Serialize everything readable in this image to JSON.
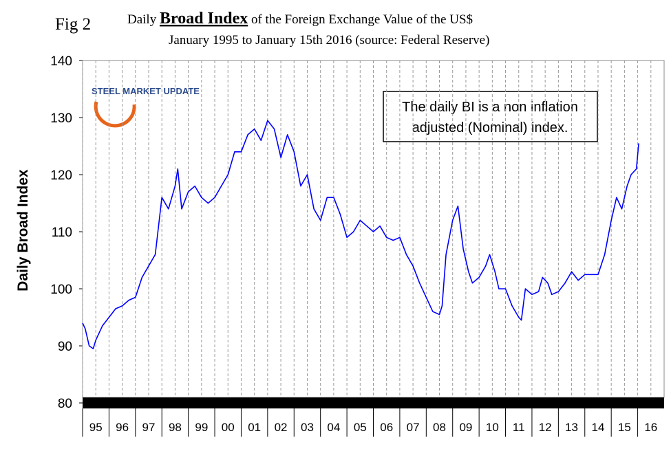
{
  "chart_data": {
    "type": "line",
    "figure_label": "Fig 2",
    "title_prefix": "Daily",
    "title_emphasis": "Broad Index",
    "title_suffix": "of the Foreign Exchange Value of the US$",
    "subtitle": "January 1995 to January 15th 2016 (source: Federal Reserve)",
    "y_label": "Daily Broad Index",
    "logo": "STEEL MARKET UPDATE",
    "annotation": [
      "The daily BI is a non inflation",
      "adjusted (Nominal) index."
    ],
    "x": [
      1995.0,
      1995.1,
      1995.25,
      1995.4,
      1995.5,
      1995.75,
      1996.0,
      1996.25,
      1996.5,
      1996.75,
      1997.0,
      1997.25,
      1997.5,
      1997.75,
      1998.0,
      1998.25,
      1998.5,
      1998.6,
      1998.75,
      1999.0,
      1999.25,
      1999.5,
      1999.75,
      2000.0,
      2000.25,
      2000.5,
      2000.75,
      2001.0,
      2001.25,
      2001.5,
      2001.75,
      2002.0,
      2002.25,
      2002.5,
      2002.75,
      2003.0,
      2003.25,
      2003.5,
      2003.75,
      2004.0,
      2004.25,
      2004.5,
      2004.75,
      2005.0,
      2005.25,
      2005.5,
      2005.75,
      2006.0,
      2006.25,
      2006.5,
      2006.75,
      2007.0,
      2007.25,
      2007.5,
      2007.75,
      2008.0,
      2008.25,
      2008.5,
      2008.6,
      2008.75,
      2009.0,
      2009.2,
      2009.4,
      2009.6,
      2009.75,
      2010.0,
      2010.25,
      2010.4,
      2010.6,
      2010.75,
      2011.0,
      2011.25,
      2011.5,
      2011.6,
      2011.75,
      2012.0,
      2012.25,
      2012.4,
      2012.6,
      2012.75,
      2013.0,
      2013.25,
      2013.5,
      2013.75,
      2014.0,
      2014.25,
      2014.5,
      2014.75,
      2015.0,
      2015.2,
      2015.4,
      2015.6,
      2015.75,
      2015.95,
      2016.04
    ],
    "series": [
      {
        "color": "#0000ff",
        "values": [
          94,
          93,
          90,
          89.5,
          91,
          93.5,
          95,
          96.5,
          97,
          98,
          98.5,
          102,
          104,
          106,
          116,
          114,
          118,
          121,
          114,
          117,
          118,
          116,
          115,
          116,
          118,
          120,
          124,
          124,
          127,
          128,
          126,
          129.5,
          128,
          123,
          127,
          124,
          118,
          120,
          114,
          112,
          116,
          116,
          113,
          109,
          110,
          112,
          111,
          110,
          111,
          109,
          108.5,
          109,
          106,
          104,
          101,
          98.5,
          96,
          95.5,
          97,
          106,
          112,
          114.5,
          107,
          103,
          101,
          102,
          104,
          106,
          103,
          100,
          100,
          97,
          95,
          94.5,
          100,
          99,
          99.5,
          102,
          101,
          99,
          99.5,
          101,
          103,
          101.5,
          102.5,
          102.5,
          102.5,
          106,
          112,
          116,
          114,
          118,
          120,
          121,
          125.5
        ]
      }
    ],
    "xlim": [
      1995,
      2017
    ],
    "xticks": [
      {
        "value": 1995,
        "label": "95"
      },
      {
        "value": 1996,
        "label": "96"
      },
      {
        "value": 1997,
        "label": "97"
      },
      {
        "value": 1998,
        "label": "98"
      },
      {
        "value": 1999,
        "label": "99"
      },
      {
        "value": 2000,
        "label": "00"
      },
      {
        "value": 2001,
        "label": "01"
      },
      {
        "value": 2002,
        "label": "02"
      },
      {
        "value": 2003,
        "label": "03"
      },
      {
        "value": 2004,
        "label": "04"
      },
      {
        "value": 2005,
        "label": "05"
      },
      {
        "value": 2006,
        "label": "06"
      },
      {
        "value": 2007,
        "label": "07"
      },
      {
        "value": 2008,
        "label": "08"
      },
      {
        "value": 2009,
        "label": "09"
      },
      {
        "value": 2010,
        "label": "10"
      },
      {
        "value": 2011,
        "label": "11"
      },
      {
        "value": 2012,
        "label": "12"
      },
      {
        "value": 2013,
        "label": "13"
      },
      {
        "value": 2014,
        "label": "14"
      },
      {
        "value": 2015,
        "label": "15"
      },
      {
        "value": 2016,
        "label": "16"
      }
    ],
    "ylim": [
      80,
      140
    ],
    "yticks": [
      80,
      90,
      100,
      110,
      120,
      130,
      140
    ],
    "grid": true
  }
}
